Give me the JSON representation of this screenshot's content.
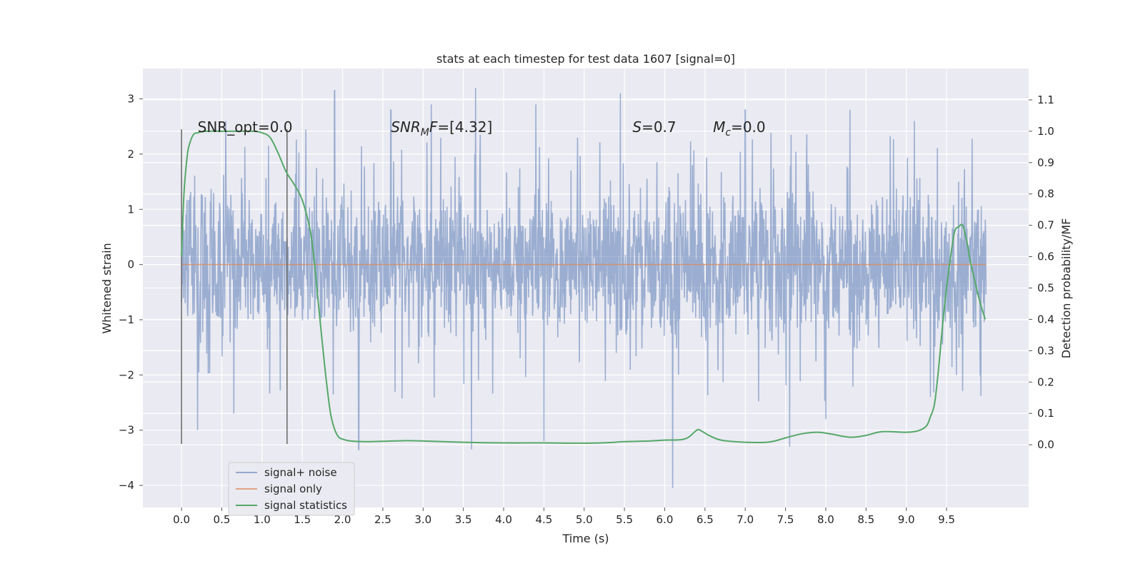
{
  "chart_data": {
    "type": "line",
    "title": "stats at each timestep for test data 1607 [signal=0]",
    "xlabel": "Time (s)",
    "ylabel_left": "Whitened strain",
    "ylabel_right": "Detection probability/MF",
    "xlim": [
      -0.48,
      10.52
    ],
    "ylim_left": [
      -4.4,
      3.55
    ],
    "ylim_right": [
      -0.2,
      1.2
    ],
    "x_ticks": [
      "0.0",
      "0.5",
      "1.0",
      "1.5",
      "2.0",
      "2.5",
      "3.0",
      "3.5",
      "4.0",
      "4.5",
      "5.0",
      "5.5",
      "6.0",
      "6.5",
      "7.0",
      "7.5",
      "8.0",
      "8.5",
      "9.0",
      "9.5"
    ],
    "y_left_ticks": [
      "3",
      "2",
      "1",
      "0",
      "−1",
      "−2",
      "−3",
      "−4"
    ],
    "y_right_ticks": [
      "1.1",
      "1.0",
      "0.9",
      "0.8",
      "0.7",
      "0.6",
      "0.5",
      "0.4",
      "0.3",
      "0.2",
      "0.1",
      "0.0"
    ],
    "annotations": [
      {
        "t": "SNR_opt=0.0",
        "x": 0.2,
        "y": 2.5
      },
      {
        "t": "SNR_MF=[4.32]",
        "x": 2.6,
        "y": 2.5
      },
      {
        "t": "S=0.7",
        "x": 5.6,
        "y": 2.5
      },
      {
        "t": "M_c=0.0",
        "x": 6.6,
        "y": 2.5
      }
    ],
    "vlines": [
      {
        "x": 0.0,
        "ymin": -3.25,
        "ymax": 2.45
      },
      {
        "x": 1.31,
        "ymin": -3.25,
        "ymax": 2.45
      }
    ],
    "noise_envelope": {
      "x_range": [
        0.0,
        9.99
      ],
      "typical_band": [
        -1.5,
        1.5
      ],
      "peaks_x": [
        0.55,
        1.9,
        2.6,
        3.1,
        3.65,
        4.4,
        5.45,
        6.1,
        7.0,
        8.3,
        9.1
      ],
      "peaks_y": [
        2.6,
        3.15,
        2.8,
        2.9,
        3.2,
        2.9,
        3.1,
        2.7,
        2.8,
        2.8,
        2.6
      ],
      "troughs_x": [
        0.2,
        0.65,
        2.2,
        3.6,
        4.5,
        6.1,
        7.55,
        8.0,
        9.3
      ],
      "troughs_y": [
        -3.0,
        -2.7,
        -3.35,
        -3.35,
        -3.2,
        -4.05,
        -3.3,
        -2.8,
        -2.4
      ]
    },
    "series": [
      {
        "name": "signal+ noise",
        "color": "#4c72b0",
        "axis": "left",
        "x_range": [
          0.0,
          9.99
        ],
        "y_range": [
          -4.05,
          3.2
        ]
      },
      {
        "name": "signal only",
        "color": "#dd8452",
        "axis": "left",
        "x": [
          0.0,
          9.99
        ],
        "y": [
          0.0,
          0.0
        ]
      },
      {
        "name": "signal statistics",
        "color": "#55a868",
        "axis": "right",
        "x": [
          0.0,
          0.03,
          0.07,
          0.1,
          0.15,
          0.2,
          0.3,
          0.5,
          0.7,
          0.9,
          1.0,
          1.1,
          1.2,
          1.3,
          1.4,
          1.5,
          1.6,
          1.65,
          1.7,
          1.75,
          1.8,
          1.85,
          1.9,
          1.95,
          2.0,
          2.1,
          2.3,
          2.5,
          2.8,
          3.0,
          3.5,
          4.0,
          4.5,
          5.0,
          5.3,
          5.5,
          5.8,
          6.0,
          6.2,
          6.3,
          6.4,
          6.45,
          6.55,
          6.7,
          7.0,
          7.3,
          7.5,
          7.7,
          7.9,
          8.05,
          8.3,
          8.5,
          8.7,
          9.0,
          9.15,
          9.25,
          9.3,
          9.35,
          9.4,
          9.45,
          9.5,
          9.55,
          9.6,
          9.65,
          9.7,
          9.75,
          9.8,
          9.9,
          9.98
        ],
        "y": [
          0.6,
          0.8,
          0.92,
          0.96,
          0.99,
          0.995,
          1.0,
          1.0,
          1.0,
          1.0,
          0.995,
          0.98,
          0.93,
          0.87,
          0.83,
          0.78,
          0.68,
          0.58,
          0.45,
          0.32,
          0.2,
          0.1,
          0.05,
          0.025,
          0.018,
          0.012,
          0.01,
          0.011,
          0.013,
          0.012,
          0.008,
          0.006,
          0.006,
          0.005,
          0.007,
          0.01,
          0.012,
          0.015,
          0.016,
          0.025,
          0.047,
          0.045,
          0.03,
          0.015,
          0.008,
          0.009,
          0.022,
          0.035,
          0.04,
          0.035,
          0.024,
          0.03,
          0.042,
          0.04,
          0.045,
          0.06,
          0.09,
          0.13,
          0.24,
          0.38,
          0.5,
          0.6,
          0.68,
          0.695,
          0.7,
          0.65,
          0.58,
          0.47,
          0.4
        ]
      }
    ],
    "legend": {
      "position": "lower-left",
      "entries": [
        "signal+ noise",
        "signal only",
        "signal statistics"
      ]
    },
    "grid": true,
    "colors": {
      "background": "#eaeaf2",
      "grid": "#ffffff",
      "noise": "#4c72b0",
      "signal": "#dd8452",
      "stat": "#55a868",
      "vline": "#666666"
    }
  }
}
